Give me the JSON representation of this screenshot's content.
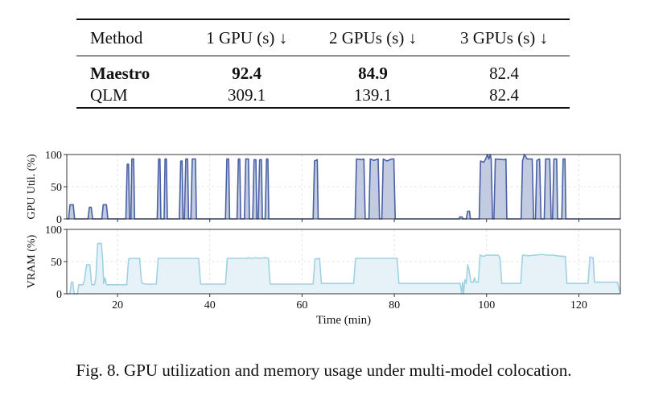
{
  "table": {
    "headers": [
      "Method",
      "1 GPU (s) ↓",
      "2 GPUs (s) ↓",
      "3 GPUs (s) ↓"
    ],
    "rows": [
      {
        "method": "Maestro",
        "values": [
          "92.4",
          "84.9",
          "82.4"
        ],
        "bold": [
          true,
          true,
          true,
          false
        ]
      },
      {
        "method": "QLM",
        "values": [
          "309.1",
          "139.1",
          "82.4"
        ],
        "bold": [
          false,
          false,
          false,
          false
        ]
      }
    ]
  },
  "chart_data": [
    {
      "type": "area",
      "ylabel": "GPU Util. (%)",
      "ylim": [
        0,
        100
      ],
      "xlim": [
        9,
        129
      ],
      "yticks": [
        0,
        50,
        100
      ],
      "grid": true,
      "color": "#4a62a4",
      "fill": "#c3cbe0",
      "series": [
        {
          "points": [
            [
              9,
              0
            ],
            [
              9.4,
              0
            ],
            [
              9.7,
              22
            ],
            [
              10.4,
              22
            ],
            [
              10.7,
              0
            ],
            [
              13.6,
              0
            ],
            [
              13.9,
              18
            ],
            [
              14.3,
              18
            ],
            [
              14.6,
              0
            ],
            [
              16.6,
              0
            ],
            [
              16.9,
              22
            ],
            [
              17.6,
              22
            ],
            [
              17.9,
              0
            ],
            [
              21.8,
              0
            ],
            [
              22.1,
              85
            ],
            [
              22.4,
              85
            ],
            [
              22.6,
              0
            ],
            [
              22.9,
              0
            ],
            [
              23.1,
              93
            ],
            [
              23.5,
              93
            ],
            [
              23.7,
              0
            ],
            [
              28.6,
              0
            ],
            [
              28.9,
              93
            ],
            [
              29.2,
              93
            ],
            [
              29.4,
              0
            ],
            [
              30.1,
              0
            ],
            [
              30.3,
              93
            ],
            [
              30.6,
              93
            ],
            [
              30.8,
              0
            ],
            [
              33.4,
              0
            ],
            [
              33.7,
              90
            ],
            [
              34.0,
              90
            ],
            [
              34.2,
              0
            ],
            [
              34.5,
              0
            ],
            [
              34.8,
              93
            ],
            [
              35.2,
              93
            ],
            [
              35.4,
              0
            ],
            [
              35.9,
              0
            ],
            [
              36.2,
              93
            ],
            [
              36.9,
              93
            ],
            [
              37.1,
              0
            ],
            [
              43.4,
              0
            ],
            [
              43.7,
              93
            ],
            [
              44.1,
              93
            ],
            [
              44.3,
              0
            ],
            [
              45.9,
              0
            ],
            [
              46.2,
              93
            ],
            [
              46.5,
              93
            ],
            [
              46.7,
              0
            ],
            [
              47.5,
              0
            ],
            [
              47.8,
              93
            ],
            [
              48.4,
              93
            ],
            [
              48.6,
              0
            ],
            [
              49.3,
              0
            ],
            [
              49.6,
              92
            ],
            [
              50.0,
              92
            ],
            [
              50.2,
              0
            ],
            [
              50.5,
              0
            ],
            [
              50.8,
              92
            ],
            [
              51.2,
              92
            ],
            [
              51.4,
              0
            ],
            [
              52.0,
              0
            ],
            [
              52.3,
              93
            ],
            [
              52.6,
              93
            ],
            [
              52.8,
              0
            ],
            [
              62.4,
              0
            ],
            [
              62.7,
              90
            ],
            [
              63.3,
              92
            ],
            [
              63.5,
              0
            ],
            [
              71.5,
              0
            ],
            [
              71.8,
              93
            ],
            [
              73.0,
              92
            ],
            [
              73.4,
              93
            ],
            [
              73.7,
              0
            ],
            [
              74.5,
              0
            ],
            [
              74.8,
              93
            ],
            [
              75.6,
              91
            ],
            [
              76.5,
              93
            ],
            [
              76.8,
              0
            ],
            [
              77.3,
              0
            ],
            [
              77.6,
              93
            ],
            [
              78.4,
              90
            ],
            [
              79.4,
              93
            ],
            [
              79.9,
              93
            ],
            [
              80.2,
              0
            ],
            [
              94,
              0
            ],
            [
              94.2,
              3
            ],
            [
              94.7,
              3
            ],
            [
              94.9,
              0
            ],
            [
              95.6,
              0
            ],
            [
              95.9,
              12
            ],
            [
              96.3,
              12
            ],
            [
              96.5,
              0
            ],
            [
              98.4,
              0
            ],
            [
              98.7,
              90
            ],
            [
              99.4,
              88
            ],
            [
              99.8,
              93
            ],
            [
              100.2,
              100
            ],
            [
              100.5,
              93
            ],
            [
              100.8,
              100
            ],
            [
              101.0,
              93
            ],
            [
              101.3,
              0
            ],
            [
              101.6,
              0
            ],
            [
              101.9,
              93
            ],
            [
              103.9,
              92
            ],
            [
              104.2,
              93
            ],
            [
              104.4,
              0
            ],
            [
              107.5,
              0
            ],
            [
              107.8,
              90
            ],
            [
              108.2,
              100
            ],
            [
              108.8,
              93
            ],
            [
              109.9,
              93
            ],
            [
              110.2,
              0
            ],
            [
              110.6,
              0
            ],
            [
              110.9,
              91
            ],
            [
              111.5,
              93
            ],
            [
              111.8,
              0
            ],
            [
              112.5,
              0
            ],
            [
              112.8,
              93
            ],
            [
              113.7,
              93
            ],
            [
              114.0,
              0
            ],
            [
              114.3,
              0
            ],
            [
              114.6,
              93
            ],
            [
              115.2,
              93
            ],
            [
              115.4,
              0
            ],
            [
              116.3,
              0
            ],
            [
              116.6,
              93
            ],
            [
              117.0,
              93
            ],
            [
              117.2,
              0
            ],
            [
              129,
              0
            ]
          ]
        }
      ]
    },
    {
      "type": "area",
      "ylabel": "VRAM (%)",
      "xlabel": "Time (min)",
      "ylim": [
        0,
        100
      ],
      "xlim": [
        9,
        129
      ],
      "xticks": [
        20,
        40,
        60,
        80,
        100,
        120
      ],
      "yticks": [
        0,
        50,
        100
      ],
      "grid": true,
      "color": "#9fd2e3",
      "fill": "#e6f2f8",
      "series": [
        {
          "points": [
            [
              9,
              0
            ],
            [
              9.7,
              0
            ],
            [
              10.0,
              18
            ],
            [
              10.3,
              18
            ],
            [
              10.6,
              0
            ],
            [
              11.3,
              0
            ],
            [
              11.6,
              14
            ],
            [
              12.5,
              14
            ],
            [
              12.8,
              20
            ],
            [
              13.3,
              45
            ],
            [
              14.0,
              45
            ],
            [
              14.2,
              30
            ],
            [
              14.4,
              14
            ],
            [
              15.0,
              14
            ],
            [
              15.3,
              25
            ],
            [
              15.7,
              78
            ],
            [
              16.5,
              78
            ],
            [
              16.8,
              50
            ],
            [
              17.0,
              16
            ],
            [
              17.3,
              25
            ],
            [
              17.6,
              14
            ],
            [
              22.0,
              14
            ],
            [
              22.4,
              54
            ],
            [
              22.8,
              55
            ],
            [
              24.8,
              55
            ],
            [
              25.2,
              17
            ],
            [
              26.0,
              15
            ],
            [
              28.4,
              15
            ],
            [
              28.8,
              55
            ],
            [
              37.6,
              55
            ],
            [
              38.0,
              15
            ],
            [
              43.4,
              15
            ],
            [
              43.8,
              55
            ],
            [
              48.0,
              55
            ],
            [
              48.3,
              56
            ],
            [
              49.0,
              55
            ],
            [
              50.0,
              56
            ],
            [
              50.6,
              55
            ],
            [
              52.0,
              56
            ],
            [
              52.7,
              55
            ],
            [
              53.1,
              15
            ],
            [
              62.4,
              15
            ],
            [
              62.8,
              54
            ],
            [
              63.8,
              55
            ],
            [
              64.2,
              16
            ],
            [
              71.2,
              16
            ],
            [
              71.6,
              55
            ],
            [
              80.6,
              55
            ],
            [
              81.0,
              16
            ],
            [
              94.3,
              16
            ],
            [
              94.6,
              0
            ],
            [
              94.8,
              18
            ],
            [
              95.0,
              0
            ],
            [
              95.3,
              22
            ],
            [
              95.6,
              16
            ],
            [
              95.9,
              45
            ],
            [
              96.2,
              38
            ],
            [
              96.6,
              18
            ],
            [
              97.1,
              18
            ],
            [
              97.4,
              25
            ],
            [
              97.6,
              18
            ],
            [
              98.2,
              18
            ],
            [
              98.6,
              60
            ],
            [
              99.3,
              58
            ],
            [
              100.0,
              60
            ],
            [
              100.8,
              60
            ],
            [
              101.2,
              60
            ],
            [
              102.5,
              60
            ],
            [
              102.9,
              56
            ],
            [
              103.3,
              16
            ],
            [
              107.4,
              16
            ],
            [
              107.8,
              60
            ],
            [
              109.2,
              59
            ],
            [
              110.4,
              60
            ],
            [
              112.0,
              61
            ],
            [
              113.4,
              60
            ],
            [
              114.5,
              60
            ],
            [
              115.2,
              59
            ],
            [
              116.5,
              58
            ],
            [
              117.1,
              58
            ],
            [
              117.4,
              16
            ],
            [
              122.0,
              16
            ],
            [
              122.4,
              57
            ],
            [
              123.1,
              56
            ],
            [
              123.4,
              18
            ],
            [
              128.4,
              18
            ],
            [
              128.8,
              5
            ],
            [
              129,
              5
            ]
          ]
        }
      ]
    }
  ],
  "caption": "Fig. 8.  GPU utilization and memory usage under multi-model colocation."
}
